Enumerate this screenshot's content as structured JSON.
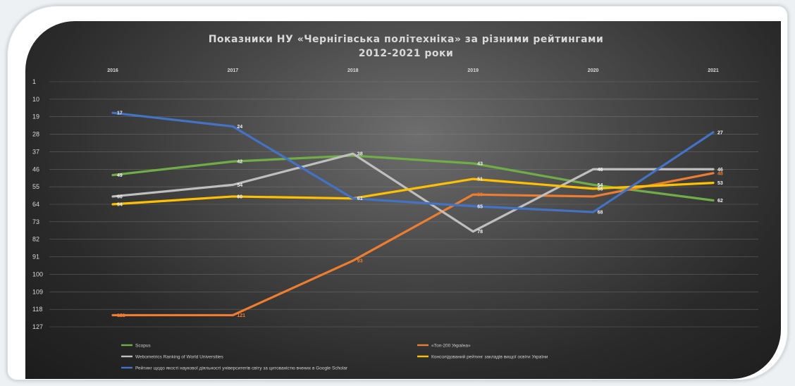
{
  "chart_data": {
    "type": "line",
    "title": [
      "Показники НУ «Чернігівська політехніка» за різними рейтингами",
      "2012-2021 роки"
    ],
    "x": [
      "2016",
      "2017",
      "2018",
      "2019",
      "2020",
      "2021"
    ],
    "y_ticks": [
      1,
      10,
      19,
      28,
      37,
      46,
      55,
      64,
      73,
      82,
      91,
      100,
      109,
      118,
      127
    ],
    "ylim": [
      1,
      127
    ],
    "y_inverted": true,
    "grid": true,
    "legend_position": "bottom",
    "series": [
      {
        "name": "Scopus",
        "color": "#70ad47",
        "values": [
          49,
          42,
          39,
          43,
          54,
          62
        ],
        "labels": [
          "49",
          "42",
          "",
          "43",
          "54",
          "62"
        ]
      },
      {
        "name": "«Топ-200 Україна»",
        "color": "#ed7d31",
        "values": [
          121,
          121,
          93,
          59,
          60,
          48
        ],
        "labels": [
          "121",
          "121",
          "93",
          "59",
          "",
          "48"
        ]
      },
      {
        "name": "Webometrics Ranking of World Universities",
        "color": "#bfbfbf",
        "values": [
          60,
          54,
          38,
          78,
          46,
          46
        ],
        "labels": [
          "60",
          "54",
          "38",
          "78",
          "46",
          "46"
        ]
      },
      {
        "name": "Консолідований рейтинг закладів вищої освіти України",
        "color": "#ffc000",
        "values": [
          64,
          60,
          61,
          51,
          56,
          53
        ],
        "labels": [
          "64",
          "60",
          "",
          "51",
          "56",
          "53"
        ]
      },
      {
        "name": "Рейтинг щодо якості наукової діяльності університетів світу за цитованістю вчених в Google Scholar",
        "color": "#4472c4",
        "values": [
          17,
          24,
          61,
          65,
          68,
          27
        ],
        "labels": [
          "17",
          "24",
          "61",
          "65",
          "68",
          "27"
        ]
      }
    ]
  }
}
